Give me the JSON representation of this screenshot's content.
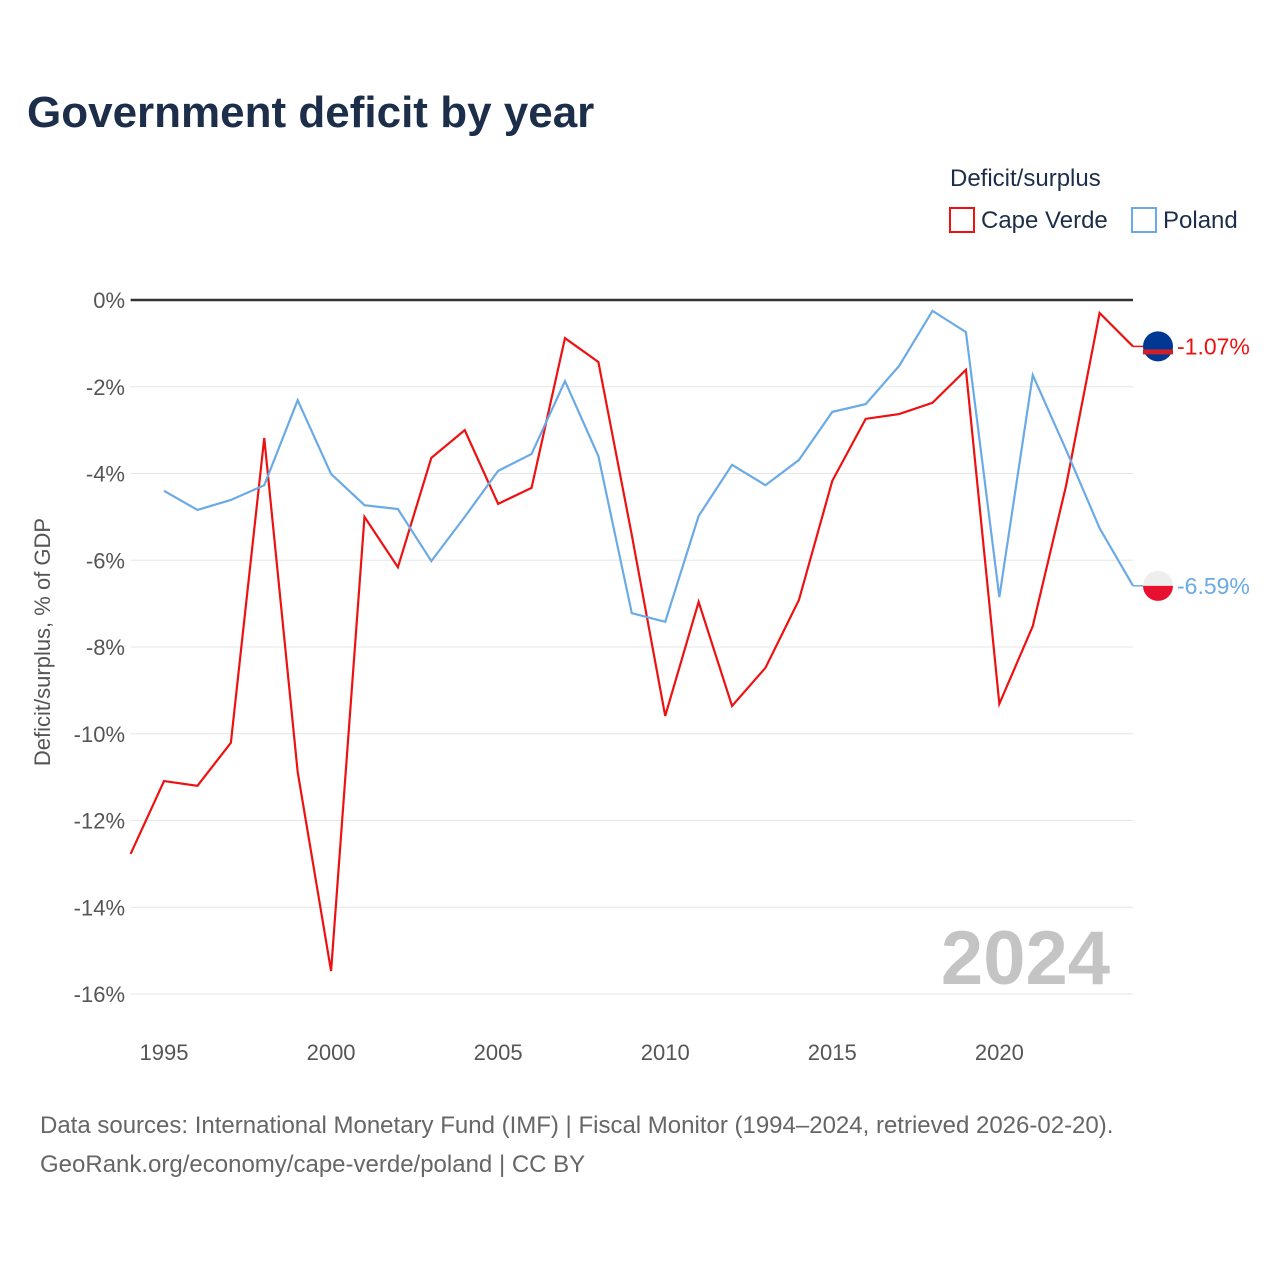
{
  "title": "Government deficit by year",
  "source_line1": "Data sources: International Monetary Fund (IMF) | Fiscal Monitor (1994–2024, retrieved 2026-02-20).",
  "source_line2": "GeoRank.org/economy/cape-verde/poland | CC BY",
  "chart_data": {
    "type": "line",
    "title": "Government deficit by year",
    "ylabel": "Deficit/surplus, % of GDP",
    "xlabel": "",
    "ylim": [
      -16,
      0
    ],
    "xlim": [
      1994,
      2024
    ],
    "yticks": [
      0,
      -2,
      -4,
      -6,
      -8,
      -10,
      -12,
      -14,
      -16
    ],
    "ytick_labels": [
      "0%",
      "-2%",
      "-4%",
      "-6%",
      "-8%",
      "-10%",
      "-12%",
      "-14%",
      "-16%"
    ],
    "xticks": [
      1995,
      2000,
      2005,
      2010,
      2015,
      2020
    ],
    "xtick_labels": [
      "1995",
      "2000",
      "2005",
      "2010",
      "2015",
      "2020"
    ],
    "legend_title": "Deficit/surplus",
    "legend_position": "top-right",
    "year_label": "2024",
    "series": [
      {
        "name": "Cape Verde",
        "color": "#ee1111",
        "end_label": "-1.07%",
        "x": [
          1994,
          1995,
          1996,
          1997,
          1998,
          1999,
          2000,
          2001,
          2002,
          2003,
          2004,
          2005,
          2006,
          2007,
          2008,
          2009,
          2010,
          2011,
          2012,
          2013,
          2014,
          2015,
          2016,
          2017,
          2018,
          2019,
          2020,
          2021,
          2022,
          2023,
          2024
        ],
        "values": [
          -12.77,
          -11.09,
          -11.2,
          -10.21,
          -3.18,
          -10.88,
          -15.47,
          -5.0,
          -6.16,
          -3.64,
          -3.0,
          -4.7,
          -4.33,
          -0.88,
          -1.43,
          -5.42,
          -9.59,
          -6.96,
          -9.36,
          -8.48,
          -6.92,
          -4.17,
          -2.74,
          -2.63,
          -2.37,
          -1.61,
          -9.31,
          -7.52,
          -4.27,
          -0.3,
          -1.07
        ]
      },
      {
        "name": "Poland",
        "color": "#6aaae6",
        "end_label": "-6.59%",
        "x": [
          1995,
          1996,
          1997,
          1998,
          1999,
          2000,
          2001,
          2002,
          2003,
          2004,
          2005,
          2006,
          2007,
          2008,
          2009,
          2010,
          2011,
          2012,
          2013,
          2014,
          2015,
          2016,
          2017,
          2018,
          2019,
          2020,
          2021,
          2022,
          2023,
          2024
        ],
        "values": [
          -4.4,
          -4.84,
          -4.61,
          -4.27,
          -2.31,
          -4.01,
          -4.73,
          -4.82,
          -6.02,
          -5.0,
          -3.94,
          -3.55,
          -1.87,
          -3.6,
          -7.22,
          -7.42,
          -4.98,
          -3.8,
          -4.27,
          -3.69,
          -2.58,
          -2.4,
          -1.52,
          -0.25,
          -0.74,
          -6.85,
          -1.73,
          -3.46,
          -5.26,
          -6.59
        ]
      }
    ]
  }
}
